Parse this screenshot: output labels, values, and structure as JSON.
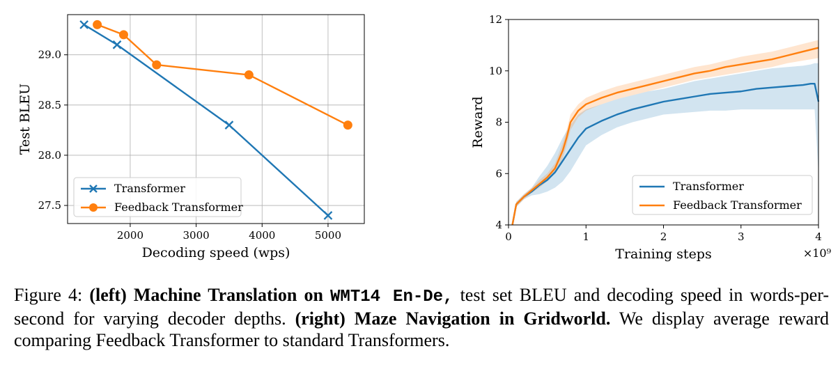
{
  "colors": {
    "transformer": "#1f77b4",
    "feedback": "#ff7f0e",
    "grid": "#b0b0b0"
  },
  "chart_data": [
    {
      "type": "line",
      "title": "",
      "xlabel": "Decoding speed (wps)",
      "ylabel": "Test BLEU",
      "xlim": [
        1050,
        5550
      ],
      "ylim": [
        27.32,
        29.4
      ],
      "xticks": [
        2000,
        3000,
        4000,
        5000
      ],
      "xtick_labels": [
        "2000",
        "3000",
        "4000",
        "5000"
      ],
      "yticks": [
        27.5,
        28.0,
        28.5,
        29.0
      ],
      "ytick_labels": [
        "27.5",
        "28.0",
        "28.5",
        "29.0"
      ],
      "grid": true,
      "legend_position": "lower-left",
      "series": [
        {
          "name": "Transformer",
          "marker": "x",
          "x": [
            1300,
            1800,
            3500,
            5000
          ],
          "y": [
            29.3,
            29.1,
            28.3,
            27.4
          ]
        },
        {
          "name": "Feedback Transformer",
          "marker": "circle",
          "x": [
            1500,
            1900,
            2400,
            3800,
            5300
          ],
          "y": [
            29.3,
            29.2,
            28.9,
            28.8,
            28.3
          ]
        }
      ]
    },
    {
      "type": "line",
      "title": "",
      "xlabel": "Training steps",
      "ylabel": "Reward",
      "x_multiplier": "×10⁹",
      "xlim": [
        0,
        4
      ],
      "ylim": [
        4,
        12
      ],
      "xticks": [
        0,
        1,
        2,
        3,
        4
      ],
      "xtick_labels": [
        "0",
        "1",
        "2",
        "3",
        "4"
      ],
      "yticks": [
        4,
        6,
        8,
        10,
        12
      ],
      "ytick_labels": [
        "4",
        "6",
        "8",
        "10",
        "12"
      ],
      "grid": false,
      "legend_position": "lower-right",
      "series": [
        {
          "name": "Transformer",
          "band": "shaded",
          "x": [
            0.05,
            0.1,
            0.2,
            0.3,
            0.4,
            0.5,
            0.6,
            0.7,
            0.8,
            0.9,
            1.0,
            1.2,
            1.4,
            1.6,
            1.8,
            2.0,
            2.2,
            2.4,
            2.6,
            2.8,
            3.0,
            3.2,
            3.4,
            3.6,
            3.8,
            3.9,
            3.95,
            4.0
          ],
          "y": [
            4.0,
            4.8,
            5.1,
            5.3,
            5.55,
            5.75,
            6.05,
            6.5,
            6.95,
            7.4,
            7.75,
            8.05,
            8.3,
            8.5,
            8.65,
            8.8,
            8.9,
            9.0,
            9.1,
            9.15,
            9.2,
            9.3,
            9.35,
            9.4,
            9.45,
            9.5,
            9.5,
            8.8
          ],
          "lower": [
            4.0,
            4.7,
            5.0,
            5.15,
            5.2,
            5.3,
            5.45,
            5.7,
            6.1,
            6.6,
            7.1,
            7.5,
            7.8,
            8.0,
            8.15,
            8.3,
            8.35,
            8.4,
            8.45,
            8.45,
            8.5,
            8.5,
            8.5,
            8.5,
            8.5,
            8.5,
            8.5,
            6.0
          ],
          "upper": [
            4.0,
            4.9,
            5.2,
            5.45,
            5.9,
            6.3,
            6.8,
            7.4,
            7.9,
            8.3,
            8.5,
            8.7,
            8.9,
            9.05,
            9.2,
            9.3,
            9.45,
            9.6,
            9.7,
            9.8,
            9.9,
            10.0,
            10.1,
            10.15,
            10.2,
            10.25,
            10.3,
            10.3
          ]
        },
        {
          "name": "Feedback Transformer",
          "band": "shaded",
          "x": [
            0.05,
            0.1,
            0.2,
            0.3,
            0.4,
            0.5,
            0.6,
            0.7,
            0.75,
            0.8,
            0.9,
            1.0,
            1.2,
            1.4,
            1.6,
            1.8,
            2.0,
            2.2,
            2.4,
            2.6,
            2.8,
            3.0,
            3.2,
            3.4,
            3.6,
            3.8,
            4.0
          ],
          "y": [
            4.0,
            4.8,
            5.1,
            5.35,
            5.6,
            5.85,
            6.2,
            6.9,
            7.4,
            8.0,
            8.45,
            8.7,
            8.95,
            9.15,
            9.3,
            9.45,
            9.6,
            9.75,
            9.9,
            10.0,
            10.15,
            10.25,
            10.35,
            10.45,
            10.6,
            10.75,
            10.9
          ],
          "lower": [
            4.0,
            4.7,
            5.0,
            5.25,
            5.45,
            5.7,
            6.0,
            6.6,
            7.1,
            7.7,
            8.2,
            8.45,
            8.7,
            8.9,
            9.05,
            9.2,
            9.35,
            9.5,
            9.65,
            9.75,
            9.85,
            9.95,
            10.05,
            10.15,
            10.3,
            10.4,
            10.5
          ],
          "upper": [
            4.0,
            4.9,
            5.2,
            5.45,
            5.75,
            6.0,
            6.4,
            7.2,
            7.7,
            8.3,
            8.7,
            8.95,
            9.2,
            9.4,
            9.55,
            9.7,
            9.85,
            10.0,
            10.15,
            10.25,
            10.4,
            10.55,
            10.65,
            10.75,
            10.9,
            11.05,
            11.2
          ]
        }
      ]
    }
  ],
  "caption": {
    "fig_label": "Figure 4:",
    "left_bold": "(left) Machine Translation on",
    "dataset": "WMT14 En-De,",
    "left_text": "test set BLEU and decoding speed in words-per-second for varying decoder depths.",
    "right_bold": "(right) Maze Navigation in Gridworld.",
    "right_text": "We display average reward comparing Feedback Transformer to standard Transformers."
  }
}
